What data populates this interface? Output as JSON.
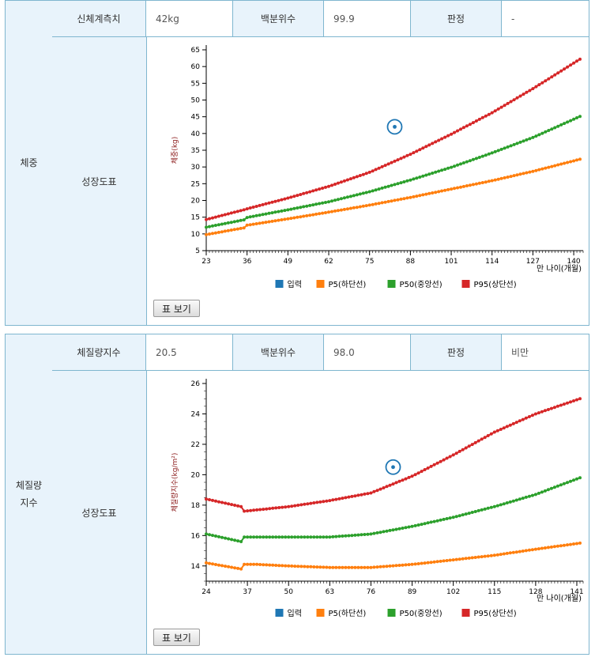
{
  "weight": {
    "category": "체중",
    "measure_label": "신체계측치",
    "measure_value": "42kg",
    "percentile_label": "백분위수",
    "percentile_value": "99.9",
    "judgement_label": "판정",
    "judgement_value": "-",
    "chart_label": "성장도표",
    "button_label": "표 보기"
  },
  "bmi": {
    "category": "체질량\n지수",
    "measure_label": "체질량지수",
    "measure_value": "20.5",
    "percentile_label": "백분위수",
    "percentile_value": "98.0",
    "judgement_label": "판정",
    "judgement_value": "비만",
    "chart_label": "성장도표",
    "button_label": "표 보기"
  },
  "colors": {
    "input": "#1f77b4",
    "p5": "#ff7f0e",
    "p50": "#2ca02c",
    "p95": "#d62728",
    "border": "#7fb6cf"
  },
  "chart_data": [
    {
      "type": "line",
      "title": "",
      "ylabel": "체중(kg)",
      "xlabel": "만 나이(개월)",
      "xlim": [
        23,
        143
      ],
      "ylim": [
        5,
        65
      ],
      "xticks": [
        23,
        36,
        49,
        62,
        75,
        88,
        101,
        114,
        127,
        140
      ],
      "yticks": [
        5,
        10,
        15,
        20,
        25,
        30,
        35,
        40,
        45,
        50,
        55,
        60,
        65
      ],
      "legend": [
        "입력",
        "P5(하단선)",
        "P50(중앙선)",
        "P95(상단선)"
      ],
      "series": [
        {
          "name": "P5(하단선)",
          "x": [
            23,
            35,
            36,
            49,
            62,
            75,
            88,
            101,
            114,
            127,
            142
          ],
          "values": [
            9.8,
            11.8,
            12.6,
            14.5,
            16.5,
            18.6,
            20.9,
            23.4,
            25.9,
            28.7,
            32.3
          ]
        },
        {
          "name": "P50(중앙선)",
          "x": [
            23,
            35,
            36,
            49,
            62,
            75,
            88,
            101,
            114,
            127,
            142
          ],
          "values": [
            12.0,
            14.2,
            14.9,
            17.2,
            19.6,
            22.6,
            26.1,
            29.9,
            34.2,
            38.8,
            45.1
          ]
        },
        {
          "name": "P95(상단선)",
          "x": [
            23,
            35,
            36,
            49,
            62,
            75,
            88,
            101,
            114,
            127,
            142
          ],
          "values": [
            14.3,
            17.2,
            17.5,
            20.7,
            24.2,
            28.4,
            33.8,
            39.8,
            46.2,
            53.4,
            62.2
          ]
        }
      ],
      "input_point": {
        "name": "입력",
        "x": 83,
        "y": 42
      }
    },
    {
      "type": "line",
      "title": "",
      "ylabel": "체질량지수(kg/m²)",
      "xlabel": "만 나이(개월)",
      "xlim": [
        24,
        143
      ],
      "ylim": [
        13,
        26
      ],
      "xticks": [
        24,
        37,
        50,
        63,
        76,
        89,
        102,
        115,
        128,
        141
      ],
      "yticks": [
        14,
        16,
        18,
        20,
        22,
        24,
        26
      ],
      "legend": [
        "입력",
        "P5(하단선)",
        "P50(중앙선)",
        "P95(상단선)"
      ],
      "series": [
        {
          "name": "P5(하단선)",
          "x": [
            24,
            35,
            36,
            40,
            50,
            63,
            76,
            89,
            102,
            115,
            128,
            142
          ],
          "values": [
            14.2,
            13.8,
            14.1,
            14.1,
            14.0,
            13.9,
            13.9,
            14.1,
            14.4,
            14.7,
            15.1,
            15.5
          ]
        },
        {
          "name": "P50(중앙선)",
          "x": [
            24,
            35,
            36,
            50,
            63,
            76,
            89,
            102,
            115,
            128,
            142
          ],
          "values": [
            16.1,
            15.6,
            15.9,
            15.9,
            15.9,
            16.1,
            16.6,
            17.2,
            17.9,
            18.7,
            19.8
          ]
        },
        {
          "name": "P95(상단선)",
          "x": [
            24,
            35,
            36,
            50,
            63,
            76,
            89,
            102,
            115,
            128,
            142
          ],
          "values": [
            18.4,
            17.9,
            17.6,
            17.9,
            18.3,
            18.8,
            19.9,
            21.3,
            22.8,
            24.0,
            25.0
          ]
        }
      ],
      "input_point": {
        "name": "입력",
        "x": 83,
        "y": 20.5
      }
    }
  ]
}
